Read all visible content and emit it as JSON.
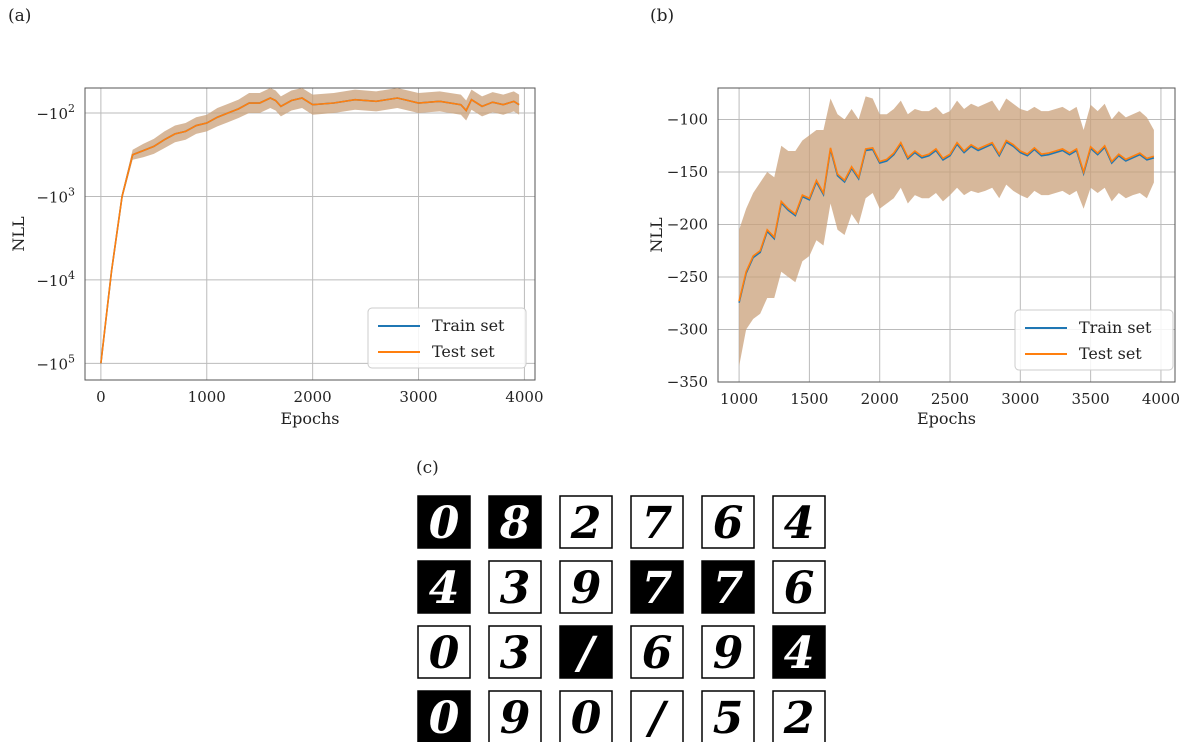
{
  "panels": {
    "a_label": "(a)",
    "b_label": "(b)",
    "c_label": "(c)"
  },
  "colors": {
    "train": "#1f77b4",
    "test": "#ff7f0e",
    "band": "#c9a07a",
    "grid": "#bbbbbb",
    "axis": "#555555"
  },
  "chart_data": [
    {
      "id": "a",
      "type": "line",
      "title": "",
      "xlabel": "Epochs",
      "ylabel": "NLL",
      "yscale": "symlog-negative",
      "xlim": [
        -150,
        4100
      ],
      "ylim_log": [
        5.2,
        1.7
      ],
      "xticks": [
        0,
        1000,
        2000,
        3000,
        4000
      ],
      "xtick_labels": [
        "0",
        "1000",
        "2000",
        "3000",
        "4000"
      ],
      "yticks_log": [
        2,
        3,
        4,
        5
      ],
      "ytick_labels": [
        {
          "base": "−10",
          "exp": "2"
        },
        {
          "base": "−10",
          "exp": "3"
        },
        {
          "base": "−10",
          "exp": "4"
        },
        {
          "base": "−10",
          "exp": "5"
        }
      ],
      "grid": true,
      "legend_position": "lower-right",
      "series": [
        {
          "name": "Train set",
          "color": "#1f77b4"
        },
        {
          "name": "Test set",
          "color": "#ff7f0e"
        }
      ],
      "x": [
        0,
        100,
        200,
        300,
        400,
        500,
        600,
        700,
        800,
        900,
        1000,
        1100,
        1200,
        1300,
        1400,
        1500,
        1600,
        1650,
        1700,
        1800,
        1900,
        2000,
        2200,
        2400,
        2600,
        2800,
        2900,
        3000,
        3200,
        3400,
        3450,
        3500,
        3600,
        3700,
        3800,
        3900,
        3950
      ],
      "y_log": [
        5.0,
        3.9,
        3.0,
        2.5,
        2.45,
        2.4,
        2.32,
        2.25,
        2.22,
        2.15,
        2.12,
        2.05,
        2.0,
        1.95,
        1.88,
        1.88,
        1.82,
        1.85,
        1.92,
        1.85,
        1.82,
        1.9,
        1.88,
        1.84,
        1.86,
        1.82,
        1.85,
        1.88,
        1.86,
        1.9,
        1.97,
        1.84,
        1.92,
        1.87,
        1.9,
        1.86,
        1.9
      ],
      "band_half_width_log": [
        0.02,
        0.03,
        0.04,
        0.06,
        0.08,
        0.09,
        0.1,
        0.1,
        0.1,
        0.1,
        0.1,
        0.11,
        0.11,
        0.11,
        0.12,
        0.12,
        0.12,
        0.12,
        0.12,
        0.12,
        0.12,
        0.12,
        0.12,
        0.12,
        0.12,
        0.12,
        0.12,
        0.12,
        0.12,
        0.12,
        0.12,
        0.12,
        0.12,
        0.12,
        0.12,
        0.12,
        0.12
      ]
    },
    {
      "id": "b",
      "type": "line",
      "title": "",
      "xlabel": "Epochs",
      "ylabel": "NLL",
      "xlim": [
        850,
        4100
      ],
      "ylim": [
        -350,
        -70
      ],
      "xticks": [
        1000,
        1500,
        2000,
        2500,
        3000,
        3500,
        4000
      ],
      "yticks": [
        -100,
        -150,
        -200,
        -250,
        -300,
        -350
      ],
      "ytick_labels": [
        "−100",
        "−150",
        "−200",
        "−250",
        "−300",
        "−350"
      ],
      "grid": true,
      "legend_position": "lower-right",
      "series": [
        {
          "name": "Train set",
          "color": "#1f77b4"
        },
        {
          "name": "Test set",
          "color": "#ff7f0e"
        }
      ],
      "x": [
        1000,
        1050,
        1100,
        1150,
        1200,
        1250,
        1300,
        1350,
        1400,
        1450,
        1500,
        1550,
        1600,
        1650,
        1700,
        1750,
        1800,
        1850,
        1900,
        1950,
        2000,
        2050,
        2100,
        2150,
        2200,
        2250,
        2300,
        2350,
        2400,
        2450,
        2500,
        2550,
        2600,
        2650,
        2700,
        2750,
        2800,
        2850,
        2900,
        2950,
        3000,
        3050,
        3100,
        3150,
        3200,
        3250,
        3300,
        3350,
        3400,
        3450,
        3500,
        3550,
        3600,
        3650,
        3700,
        3750,
        3800,
        3850,
        3900,
        3950
      ],
      "y": [
        -273,
        -245,
        -230,
        -225,
        -205,
        -212,
        -178,
        -185,
        -190,
        -172,
        -175,
        -158,
        -170,
        -127,
        -152,
        -158,
        -145,
        -155,
        -128,
        -127,
        -140,
        -138,
        -132,
        -122,
        -136,
        -130,
        -135,
        -133,
        -128,
        -137,
        -133,
        -122,
        -130,
        -124,
        -128,
        -125,
        -122,
        -133,
        -120,
        -124,
        -130,
        -133,
        -127,
        -133,
        -132,
        -130,
        -128,
        -132,
        -128,
        -150,
        -126,
        -132,
        -125,
        -140,
        -133,
        -138,
        -135,
        -132,
        -137,
        -135
      ],
      "band_lower": [
        -335,
        -300,
        -290,
        -285,
        -270,
        -270,
        -245,
        -250,
        -255,
        -235,
        -230,
        -215,
        -220,
        -180,
        -205,
        -210,
        -190,
        -200,
        -175,
        -170,
        -185,
        -180,
        -175,
        -165,
        -180,
        -172,
        -175,
        -175,
        -170,
        -178,
        -172,
        -165,
        -172,
        -168,
        -170,
        -168,
        -165,
        -175,
        -162,
        -168,
        -172,
        -175,
        -168,
        -172,
        -172,
        -170,
        -168,
        -172,
        -168,
        -185,
        -165,
        -170,
        -165,
        -178,
        -170,
        -175,
        -172,
        -170,
        -175,
        -160
      ],
      "band_upper": [
        -205,
        -185,
        -170,
        -160,
        -150,
        -155,
        -125,
        -130,
        -130,
        -120,
        -115,
        -110,
        -110,
        -80,
        -95,
        -100,
        -90,
        -100,
        -78,
        -80,
        -95,
        -95,
        -90,
        -82,
        -95,
        -90,
        -92,
        -92,
        -88,
        -95,
        -92,
        -82,
        -90,
        -85,
        -88,
        -85,
        -82,
        -92,
        -80,
        -85,
        -90,
        -92,
        -88,
        -92,
        -92,
        -90,
        -88,
        -92,
        -88,
        -110,
        -86,
        -92,
        -85,
        -100,
        -92,
        -98,
        -95,
        -92,
        -98,
        -110
      ]
    }
  ],
  "digit_grid": [
    [
      {
        "digit": "0",
        "inverted": true
      },
      {
        "digit": "8",
        "inverted": true
      },
      {
        "digit": "2",
        "inverted": false
      },
      {
        "digit": "7",
        "inverted": false
      },
      {
        "digit": "6",
        "inverted": false
      },
      {
        "digit": "4",
        "inverted": false
      }
    ],
    [
      {
        "digit": "4",
        "inverted": true
      },
      {
        "digit": "3",
        "inverted": false
      },
      {
        "digit": "9",
        "inverted": false
      },
      {
        "digit": "7",
        "inverted": true
      },
      {
        "digit": "7",
        "inverted": true
      },
      {
        "digit": "6",
        "inverted": false
      }
    ],
    [
      {
        "digit": "0",
        "inverted": false
      },
      {
        "digit": "3",
        "inverted": false
      },
      {
        "digit": "/",
        "inverted": true
      },
      {
        "digit": "6",
        "inverted": false
      },
      {
        "digit": "9",
        "inverted": false
      },
      {
        "digit": "4",
        "inverted": true
      }
    ],
    [
      {
        "digit": "0",
        "inverted": true
      },
      {
        "digit": "9",
        "inverted": false
      },
      {
        "digit": "0",
        "inverted": false
      },
      {
        "digit": "/",
        "inverted": false
      },
      {
        "digit": "5",
        "inverted": false
      },
      {
        "digit": "2",
        "inverted": false
      }
    ]
  ]
}
